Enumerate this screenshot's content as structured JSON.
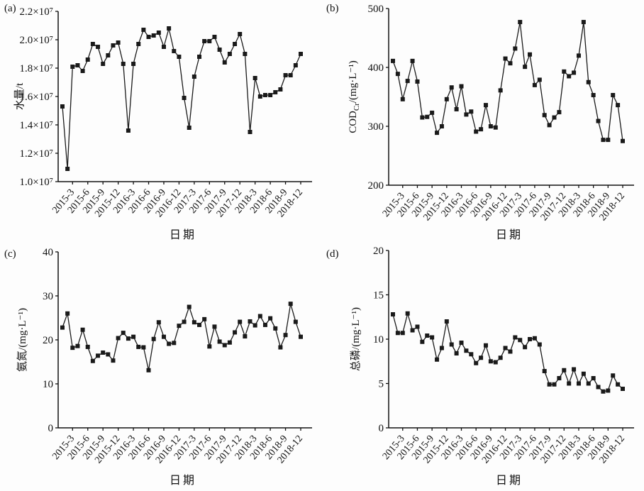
{
  "figure": {
    "xlabel": "日期",
    "x_categories": [
      "2015-1",
      "2015-2",
      "2015-3",
      "2015-4",
      "2015-5",
      "2015-6",
      "2015-7",
      "2015-8",
      "2015-9",
      "2015-10",
      "2015-11",
      "2015-12",
      "2016-1",
      "2016-2",
      "2016-3",
      "2016-4",
      "2016-5",
      "2016-6",
      "2016-7",
      "2016-8",
      "2016-9",
      "2016-10",
      "2016-11",
      "2016-12",
      "2017-1",
      "2017-2",
      "2017-3",
      "2017-4",
      "2017-5",
      "2017-6",
      "2017-7",
      "2017-8",
      "2017-9",
      "2017-10",
      "2017-11",
      "2017-12",
      "2018-1",
      "2018-2",
      "2018-3",
      "2018-4",
      "2018-5",
      "2018-6",
      "2018-7",
      "2018-8",
      "2018-9",
      "2018-10",
      "2018-11",
      "2018-12"
    ],
    "x_tick_labels": [
      "2015-3",
      "2015-6",
      "2015-9",
      "2015-12",
      "2016-3",
      "2016-6",
      "2016-9",
      "2016-12",
      "2017-3",
      "2017-6",
      "2017-9",
      "2017-12",
      "2018-3",
      "2018-6",
      "2018-9",
      "2018-12"
    ],
    "x_tick_indices": [
      2,
      5,
      8,
      11,
      14,
      17,
      20,
      23,
      26,
      29,
      32,
      35,
      38,
      41,
      44,
      47
    ]
  },
  "style": {
    "series_color": "#1a1a1a",
    "axis_color": "#111111",
    "marker": "square"
  },
  "chart_data": [
    {
      "panel_label": "(a)",
      "type": "line",
      "ylabel_text": "水量/t",
      "ylabel_segments": [
        {
          "t": "水量/t"
        }
      ],
      "xlabel": "日期",
      "unit": "10⁷ t",
      "ylim": [
        1.0,
        2.2
      ],
      "grid": false,
      "yticks": [
        {
          "v": 1.0,
          "label": "1.0×10⁷"
        },
        {
          "v": 1.2,
          "label": "1.2×10⁷"
        },
        {
          "v": 1.4,
          "label": "1.4×10⁷"
        },
        {
          "v": 1.6,
          "label": "1.6×10⁷"
        },
        {
          "v": 1.8,
          "label": "1.8×10⁷"
        },
        {
          "v": 2.0,
          "label": "2.0×10⁷"
        },
        {
          "v": 2.2,
          "label": "2.2×10⁷"
        }
      ],
      "values": [
        1.53,
        1.09,
        1.81,
        1.82,
        1.78,
        1.86,
        1.97,
        1.95,
        1.83,
        1.89,
        1.96,
        1.98,
        1.83,
        1.36,
        1.83,
        1.97,
        2.07,
        2.02,
        2.03,
        2.05,
        1.95,
        2.08,
        1.92,
        1.88,
        1.59,
        1.38,
        1.74,
        1.88,
        1.99,
        1.99,
        2.02,
        1.93,
        1.84,
        1.9,
        1.97,
        2.04,
        1.9,
        1.35,
        1.73,
        1.6,
        1.61,
        1.61,
        1.63,
        1.65,
        1.75,
        1.75,
        1.82,
        1.9
      ]
    },
    {
      "panel_label": "(b)",
      "type": "line",
      "ylabel_text": "CODCr/(mg·L⁻¹)",
      "ylabel_segments": [
        {
          "t": "COD"
        },
        {
          "t": "Cr",
          "sub": true
        },
        {
          "t": "/(mg·L⁻¹)"
        }
      ],
      "xlabel": "日期",
      "unit": "mg/L",
      "ylim": [
        200,
        500
      ],
      "grid": false,
      "yticks": [
        {
          "v": 200,
          "label": "200"
        },
        {
          "v": 300,
          "label": "300"
        },
        {
          "v": 400,
          "label": "400"
        },
        {
          "v": 500,
          "label": "500"
        }
      ],
      "values": [
        411,
        389,
        346,
        377,
        411,
        376,
        315,
        316,
        323,
        289,
        300,
        346,
        366,
        329,
        368,
        320,
        325,
        291,
        295,
        336,
        300,
        298,
        361,
        415,
        407,
        432,
        477,
        401,
        422,
        370,
        379,
        319,
        302,
        315,
        324,
        393,
        385,
        391,
        420,
        477,
        375,
        353,
        309,
        277,
        277,
        353,
        336,
        275
      ]
    },
    {
      "panel_label": "(c)",
      "type": "line",
      "ylabel_text": "氨氮/(mg·L⁻¹)",
      "ylabel_segments": [
        {
          "t": "氨氮/(mg·L⁻¹)"
        }
      ],
      "xlabel": "日期",
      "unit": "mg/L",
      "ylim": [
        0,
        40
      ],
      "grid": false,
      "yticks": [
        {
          "v": 0,
          "label": "0"
        },
        {
          "v": 10,
          "label": "10"
        },
        {
          "v": 20,
          "label": "20"
        },
        {
          "v": 30,
          "label": "30"
        },
        {
          "v": 40,
          "label": "40"
        }
      ],
      "values": [
        22.8,
        26.0,
        18.2,
        18.6,
        22.3,
        18.4,
        15.2,
        16.4,
        17.1,
        16.7,
        15.3,
        20.4,
        21.6,
        20.3,
        20.7,
        18.4,
        18.3,
        13.1,
        20.2,
        24.0,
        20.7,
        19.1,
        19.3,
        23.2,
        24.1,
        27.5,
        24.0,
        23.4,
        24.7,
        18.5,
        23.0,
        19.6,
        18.8,
        19.4,
        21.7,
        24.1,
        20.8,
        24.2,
        23.3,
        25.4,
        23.4,
        24.9,
        22.6,
        18.3,
        21.1,
        28.2,
        24.1,
        20.7
      ]
    },
    {
      "panel_label": "(d)",
      "type": "line",
      "ylabel_text": "总磷/(mg·L⁻¹)",
      "ylabel_segments": [
        {
          "t": "总磷/(mg·L⁻¹)"
        }
      ],
      "xlabel": "日期",
      "unit": "mg/L",
      "ylim": [
        0,
        20
      ],
      "grid": false,
      "yticks": [
        {
          "v": 0,
          "label": "0"
        },
        {
          "v": 5,
          "label": "5"
        },
        {
          "v": 10,
          "label": "10"
        },
        {
          "v": 15,
          "label": "15"
        },
        {
          "v": 20,
          "label": "20"
        }
      ],
      "values": [
        12.8,
        10.7,
        10.7,
        12.9,
        11.0,
        11.4,
        9.7,
        10.4,
        10.2,
        7.7,
        9.0,
        12.0,
        9.4,
        8.4,
        9.6,
        8.7,
        8.3,
        7.3,
        7.9,
        9.3,
        7.5,
        7.4,
        7.9,
        9.0,
        8.6,
        10.2,
        9.9,
        9.1,
        10.0,
        10.1,
        9.4,
        6.4,
        4.9,
        4.9,
        5.6,
        6.5,
        5.0,
        6.6,
        5.0,
        6.1,
        5.0,
        5.6,
        4.6,
        4.1,
        4.2,
        5.9,
        4.9,
        4.4
      ]
    }
  ]
}
